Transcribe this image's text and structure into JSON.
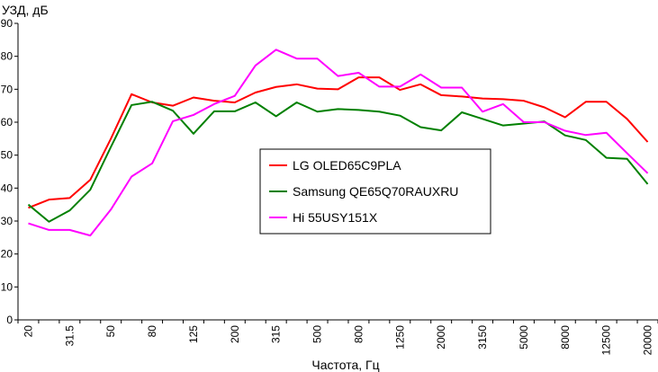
{
  "chart_data": {
    "type": "line",
    "title": "",
    "ylabel": "УЗД, дБ",
    "xlabel": "Частота, Гц",
    "ylim": [
      0,
      90
    ],
    "yticks": [
      0,
      10,
      20,
      30,
      40,
      50,
      60,
      70,
      80,
      90
    ],
    "grid": false,
    "legend_position": "center-right",
    "categories": [
      "20",
      "25",
      "31.5",
      "40",
      "50",
      "63",
      "80",
      "100",
      "125",
      "160",
      "200",
      "250",
      "315",
      "400",
      "500",
      "630",
      "800",
      "1000",
      "1250",
      "1600",
      "2000",
      "2500",
      "3150",
      "4000",
      "5000",
      "6300",
      "8000",
      "10000",
      "12500",
      "16000",
      "20000"
    ],
    "tick_labels": [
      "20",
      "31.5",
      "50",
      "80",
      "125",
      "200",
      "315",
      "500",
      "800",
      "1250",
      "2000",
      "3150",
      "5000",
      "8000",
      "12500",
      "20000"
    ],
    "series": [
      {
        "name": "LG OLED65C9PLA",
        "color": "#ff0000",
        "values": [
          34,
          36.5,
          37,
          42.5,
          55,
          68.5,
          66,
          65,
          67.5,
          66.5,
          66,
          69,
          70.7,
          71.5,
          70.2,
          70,
          73.6,
          73.6,
          69.8,
          71.5,
          68.2,
          67.8,
          67.2,
          67,
          66.5,
          64.5,
          61.5,
          66.2,
          66.2,
          61,
          54
        ]
      },
      {
        "name": "Samsung QE65Q70RAUXRU",
        "color": "#008000",
        "values": [
          35,
          29.8,
          33.2,
          39.5,
          52.5,
          65.2,
          66.2,
          63.5,
          56.5,
          63.3,
          63.3,
          66,
          61.8,
          66,
          63.2,
          64,
          63.7,
          63.2,
          62,
          58.5,
          57.5,
          63,
          61,
          59,
          59.6,
          60.2,
          56,
          54.6,
          49.2,
          48.9,
          41.2
        ]
      },
      {
        "name": "Hi 55USY151X",
        "color": "#ff00ff",
        "values": [
          29.3,
          27.3,
          27.3,
          25.6,
          33.5,
          43.5,
          47.5,
          60.3,
          62.2,
          65.5,
          68,
          77.2,
          82,
          79.3,
          79.3,
          74,
          75,
          70.8,
          70.8,
          74.5,
          70.5,
          70.5,
          63.2,
          65.5,
          60,
          60,
          57.4,
          56.1,
          56.8,
          50.6,
          44.5
        ]
      }
    ]
  }
}
